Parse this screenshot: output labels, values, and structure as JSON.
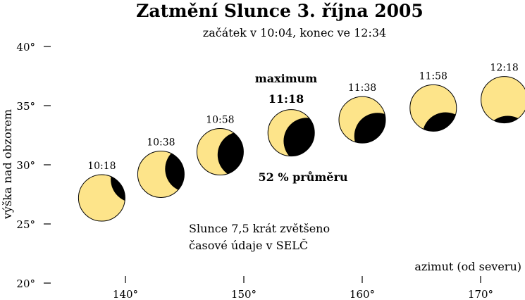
{
  "title": "Zatmění Slunce 3. října 2005",
  "subtitle": "začátek v 10:04, konec ve 12:34",
  "y_axis_label": "výška nad obzorem",
  "x_axis_label": "azimut (od severu)",
  "maximum_label": "maximum",
  "maximum_time": "11:18",
  "magnitude_label": "52 % průměru",
  "notes": [
    "Slunce 7,5 krát zvětšeno",
    "časové údaje v SELČ"
  ],
  "colors": {
    "sun": "#fde48a",
    "moon": "#000000"
  },
  "chart_data": {
    "type": "scatter",
    "x_ticks": [
      "140°",
      "150°",
      "160°",
      "170°"
    ],
    "y_ticks": [
      "20°",
      "25°",
      "30°",
      "35°",
      "40°"
    ],
    "points": [
      {
        "time": "10:18",
        "azimuth": 138,
        "altitude": 27.2,
        "coverage": 0.2
      },
      {
        "time": "10:38",
        "azimuth": 143,
        "altitude": 29.2,
        "coverage": 0.4
      },
      {
        "time": "10:58",
        "azimuth": 148,
        "altitude": 31.1,
        "coverage": 0.55
      },
      {
        "time": "11:18",
        "azimuth": 154,
        "altitude": 32.7,
        "coverage": 0.62
      },
      {
        "time": "11:38",
        "azimuth": 160,
        "altitude": 33.8,
        "coverage": 0.52
      },
      {
        "time": "11:58",
        "azimuth": 166,
        "altitude": 34.8,
        "coverage": 0.35
      },
      {
        "time": "12:18",
        "azimuth": 172,
        "altitude": 35.5,
        "coverage": 0.15
      }
    ]
  }
}
